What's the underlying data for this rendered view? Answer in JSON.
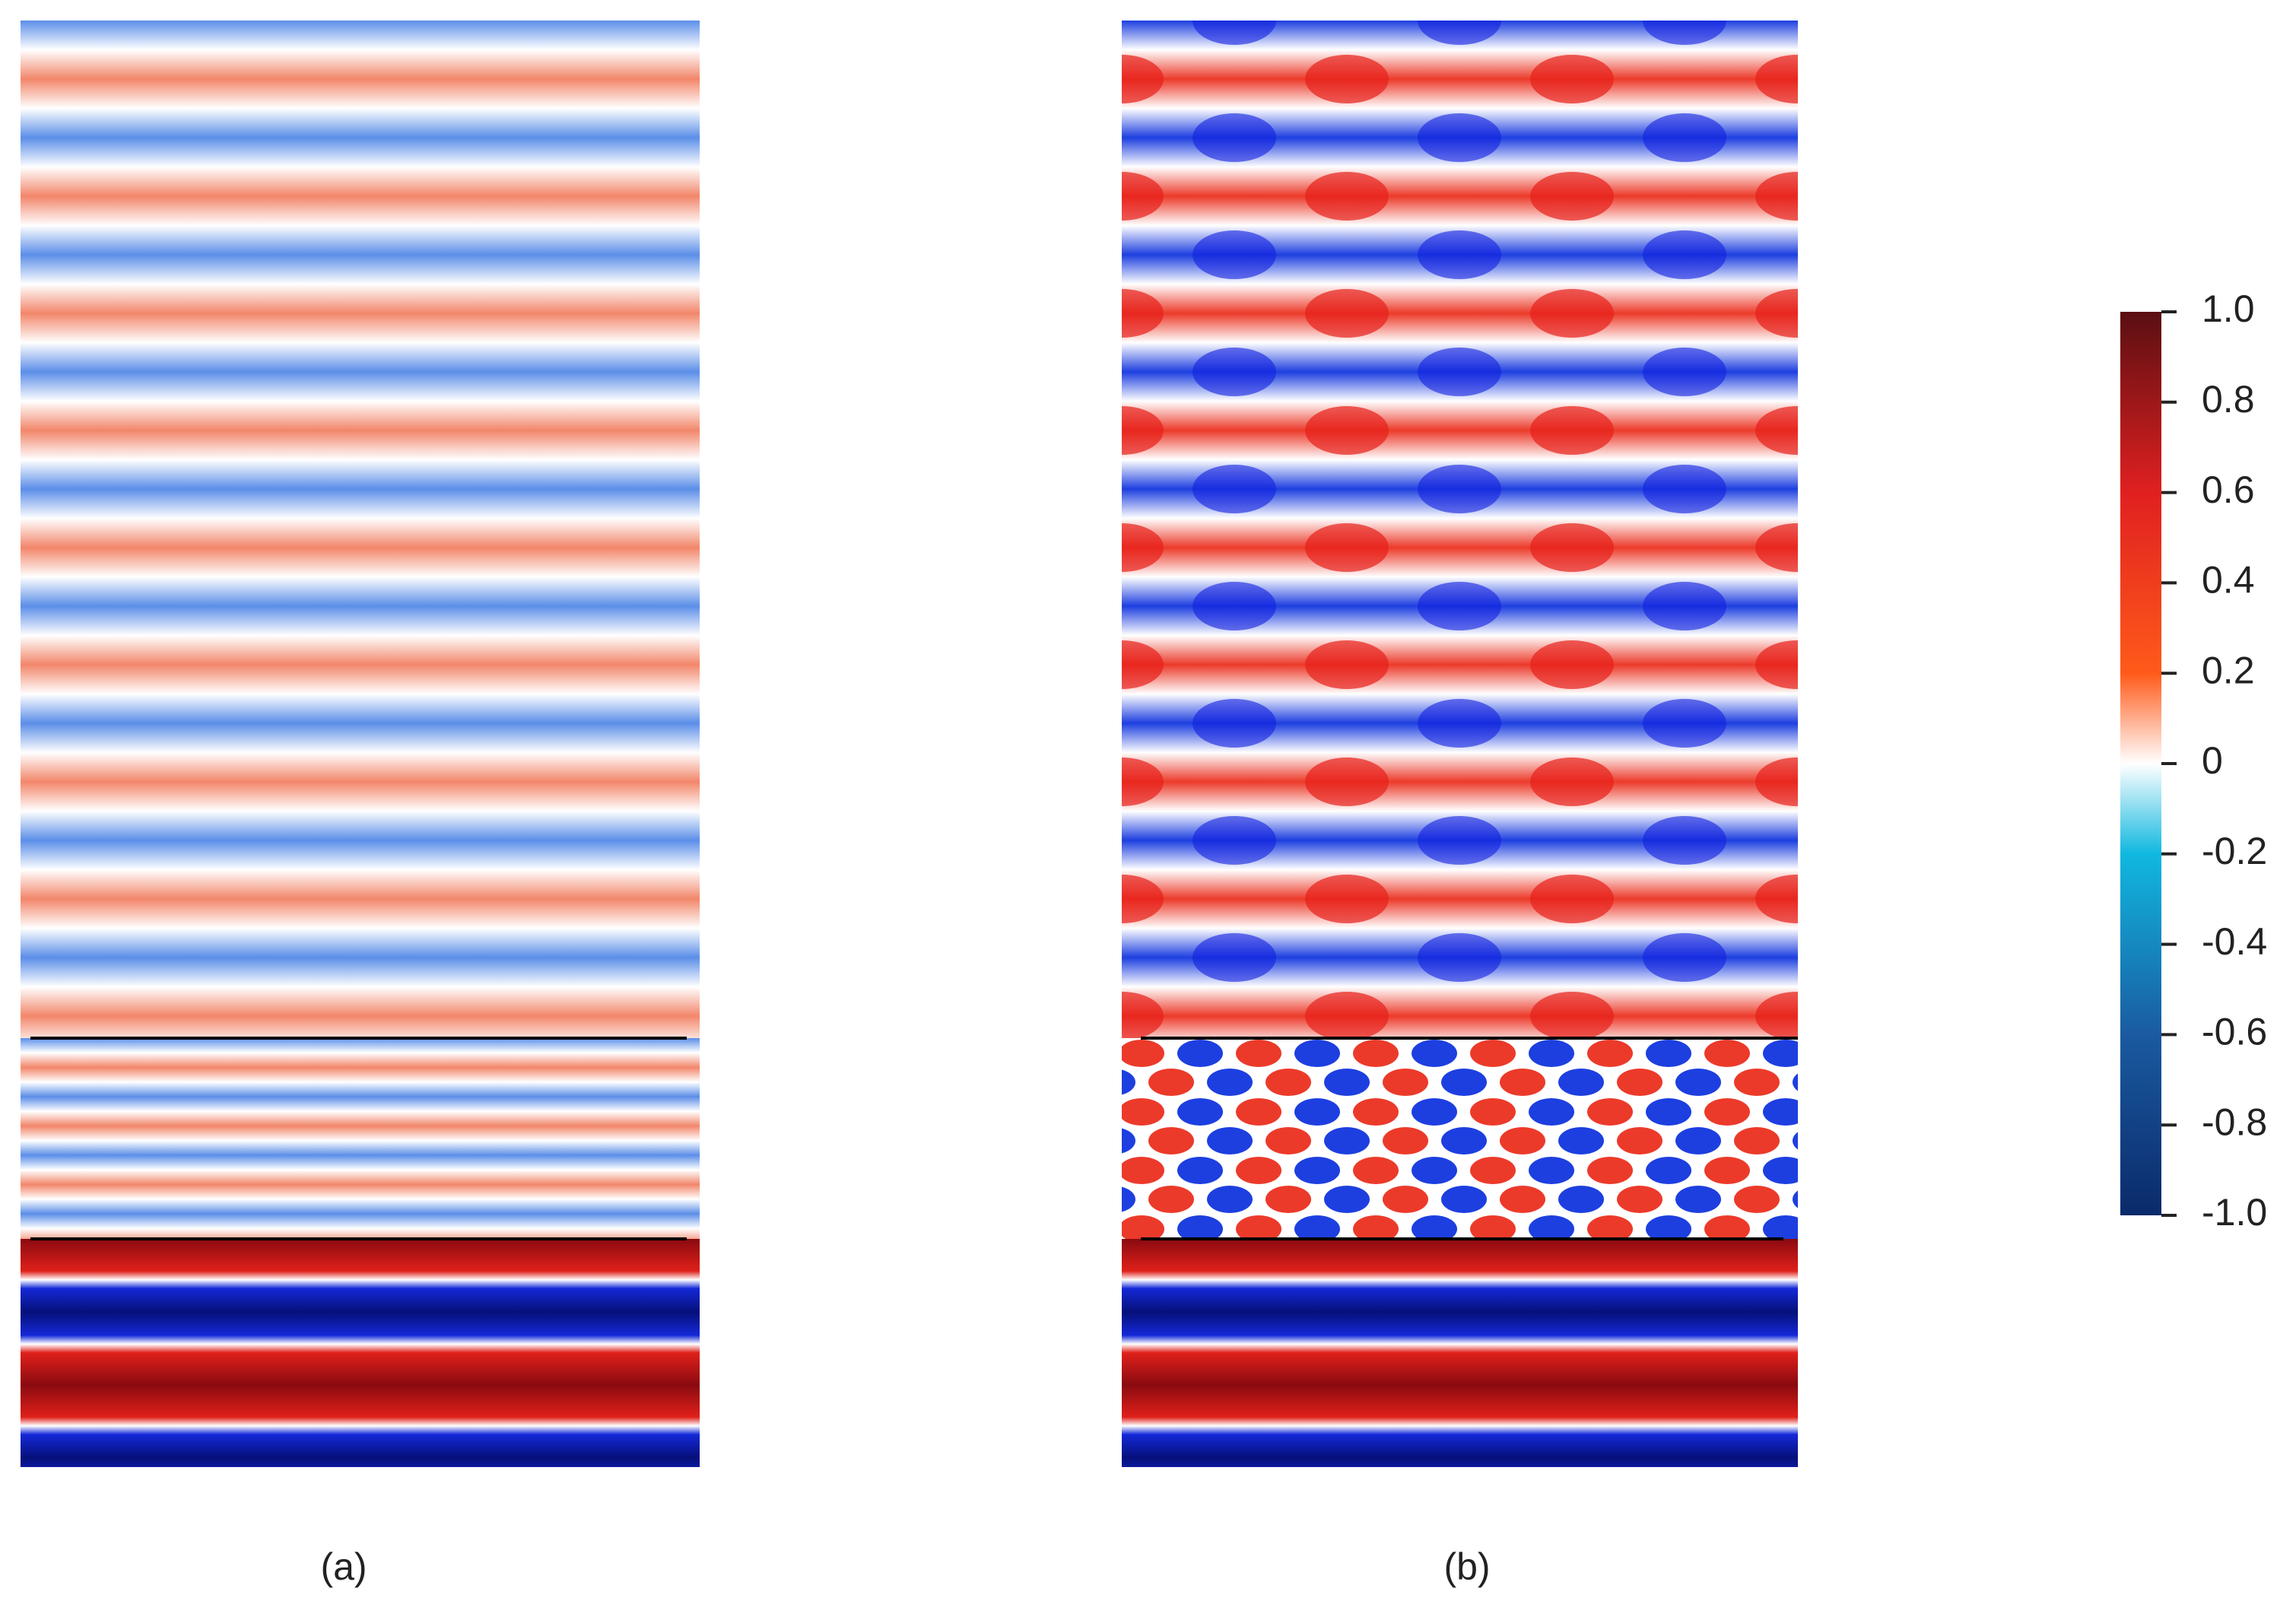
{
  "panels": [
    {
      "label": "(a)"
    },
    {
      "label": "(b)"
    }
  ],
  "colorbar": {
    "lim": [
      -1,
      1
    ],
    "ticks": [
      {
        "value": 1,
        "label": "1.0"
      },
      0.8,
      0.6,
      0.4,
      0.2,
      0,
      -0.2,
      -0.4,
      -0.6,
      -0.8,
      {
        "value": -1,
        "label": "-1.0"
      }
    ]
  }
}
